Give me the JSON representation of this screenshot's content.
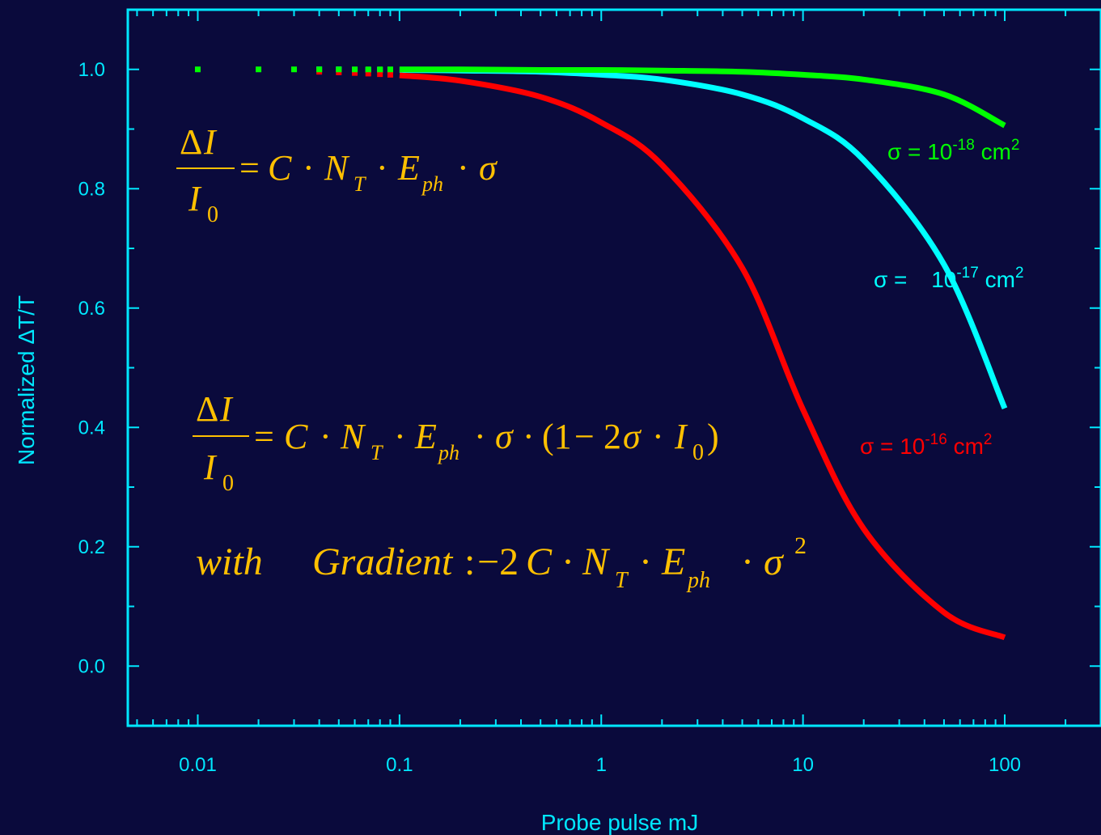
{
  "chart_data": {
    "type": "line",
    "title": "",
    "xlabel": "Probe pulse mJ",
    "ylabel": "Normalized ΔT/T",
    "x_scale": "log",
    "xlim": [
      0.0045,
      300
    ],
    "ylim": [
      -0.1,
      1.1
    ],
    "x_ticks": [
      0.01,
      0.1,
      1,
      10,
      100
    ],
    "x_tick_labels": [
      "0.01",
      "0.1",
      "1",
      "10",
      "100"
    ],
    "y_ticks": [
      0.0,
      0.2,
      0.4,
      0.6,
      0.8,
      1.0
    ],
    "y_tick_labels": [
      "0.0",
      "0.2",
      "0.4",
      "0.6",
      "0.8",
      "1.0"
    ],
    "grid": false,
    "series": [
      {
        "name": "σ = 10-18 cm2",
        "label_base": "σ = 10",
        "label_exp": "-18",
        "label_unit": " cm",
        "label_unit_exp": "2",
        "color": "#00ff00",
        "x": [
          0.01,
          0.02,
          0.03,
          0.04,
          0.05,
          0.06,
          0.07,
          0.08,
          0.09,
          0.1,
          0.2,
          0.5,
          1,
          2,
          5,
          10,
          20,
          50,
          100
        ],
        "y": [
          1.0,
          1.0,
          1.0,
          1.0,
          1.0,
          1.0,
          1.0,
          1.0,
          1.0,
          1.0,
          1.0,
          0.999,
          0.999,
          0.998,
          0.996,
          0.991,
          0.983,
          0.958,
          0.906
        ]
      },
      {
        "name": "σ = 10-17 cm2",
        "label_base": "σ = ",
        "label_gap": "10",
        "label_exp": "-17",
        "label_unit": " cm",
        "label_unit_exp": "2",
        "color": "#00ffff",
        "x": [
          0.04,
          0.05,
          0.06,
          0.07,
          0.08,
          0.09,
          0.1,
          0.2,
          0.5,
          1,
          2,
          5,
          10,
          20,
          50,
          100
        ],
        "y": [
          1.0,
          1.0,
          0.999,
          0.999,
          0.999,
          0.999,
          0.999,
          0.998,
          0.996,
          0.991,
          0.983,
          0.958,
          0.918,
          0.848,
          0.673,
          0.432
        ]
      },
      {
        "name": "σ = 10-16 cm2",
        "label_base": "σ = 10",
        "label_exp": "-16",
        "label_unit": " cm",
        "label_unit_exp": "2",
        "color": "#ff0000",
        "x": [
          0.04,
          0.05,
          0.06,
          0.07,
          0.08,
          0.09,
          0.1,
          0.2,
          0.5,
          1,
          2,
          5,
          10,
          20,
          50,
          100
        ],
        "y": [
          0.996,
          0.995,
          0.994,
          0.993,
          0.992,
          0.991,
          0.99,
          0.981,
          0.954,
          0.911,
          0.84,
          0.667,
          0.43,
          0.23,
          0.09,
          0.048
        ]
      }
    ],
    "annotations": {
      "eq1": "ΔI / I0 = C · NT · Eph · σ",
      "eq2": "ΔI / I0 = C · NT · Eph · σ · (1 − 2σ · I0)",
      "eq3": "with   Gradient : −2C · NT · Eph · σ2"
    },
    "colors": {
      "background": "#0a0a3c",
      "axes": "#00e8ff",
      "equations": "#ffc000"
    }
  }
}
